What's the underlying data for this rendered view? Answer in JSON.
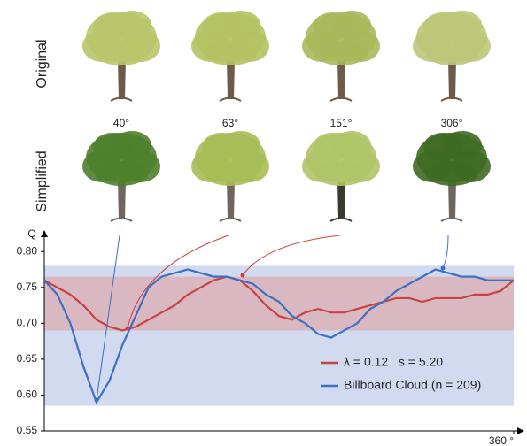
{
  "row_labels": [
    "Original",
    "Simplified"
  ],
  "angles": [
    "40°",
    "63°",
    "151°",
    "306°"
  ],
  "chart_data": {
    "type": "line",
    "y_label": "Q",
    "x": [
      0,
      10,
      20,
      30,
      40,
      50,
      60,
      70,
      80,
      90,
      100,
      110,
      120,
      130,
      140,
      150,
      160,
      170,
      180,
      190,
      200,
      210,
      220,
      230,
      240,
      250,
      260,
      270,
      280,
      290,
      300,
      310,
      320,
      330,
      340,
      350,
      360
    ],
    "series": [
      {
        "name": "λ = 0.12   s = 5.20",
        "color": "#c8433f",
        "values": [
          0.76,
          0.75,
          0.74,
          0.725,
          0.705,
          0.695,
          0.69,
          0.695,
          0.705,
          0.715,
          0.725,
          0.74,
          0.75,
          0.76,
          0.765,
          0.76,
          0.745,
          0.725,
          0.71,
          0.705,
          0.715,
          0.72,
          0.715,
          0.715,
          0.72,
          0.725,
          0.73,
          0.735,
          0.735,
          0.73,
          0.735,
          0.735,
          0.735,
          0.74,
          0.74,
          0.745,
          0.76
        ]
      },
      {
        "name": "Billboard Cloud (n = 209)",
        "color": "#3d6fc2",
        "values": [
          0.76,
          0.74,
          0.7,
          0.64,
          0.59,
          0.62,
          0.67,
          0.71,
          0.75,
          0.765,
          0.77,
          0.775,
          0.77,
          0.765,
          0.765,
          0.76,
          0.755,
          0.74,
          0.73,
          0.71,
          0.7,
          0.685,
          0.68,
          0.69,
          0.7,
          0.72,
          0.73,
          0.745,
          0.755,
          0.765,
          0.775,
          0.77,
          0.765,
          0.765,
          0.76,
          0.76,
          0.76
        ]
      }
    ],
    "bands": [
      {
        "ylim": [
          0.585,
          0.78
        ],
        "color": "#c9d3ec"
      },
      {
        "ylim": [
          0.69,
          0.765
        ],
        "color": "#dcb2b8"
      }
    ],
    "xlim": [
      0,
      360
    ],
    "ylim": [
      0.55,
      0.82
    ],
    "xticks": [
      {
        "value": 360,
        "label": "360 °"
      }
    ],
    "yticks": [
      {
        "value": 0.55,
        "label": "0.55"
      },
      {
        "value": 0.6,
        "label": "0.60"
      },
      {
        "value": 0.65,
        "label": "0.65"
      },
      {
        "value": 0.7,
        "label": "0.70"
      },
      {
        "value": 0.75,
        "label": "0.75"
      },
      {
        "value": 0.8,
        "label": "0.80"
      }
    ]
  }
}
